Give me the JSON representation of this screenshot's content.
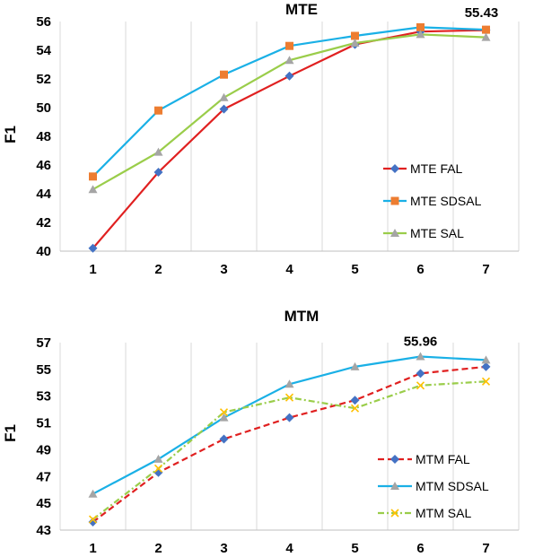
{
  "chart_data": [
    {
      "type": "line",
      "title": "MTE",
      "xlabel": "",
      "ylabel": "F1",
      "categories": [
        "1",
        "2",
        "3",
        "4",
        "5",
        "6",
        "7"
      ],
      "yticks": [
        "40",
        "42",
        "44",
        "46",
        "48",
        "50",
        "52",
        "54",
        "56"
      ],
      "ylim": [
        40,
        56
      ],
      "grid": "vertical",
      "legend_position": "bottom-right",
      "annotation": {
        "text": "55.43",
        "x": "7",
        "y": 55.43
      },
      "series": [
        {
          "name": "MTE FAL",
          "color": "#e02020",
          "marker": "diamond",
          "marker_color": "#4472c4",
          "dash": "solid",
          "values": [
            40.2,
            45.5,
            49.9,
            52.2,
            54.4,
            55.3,
            55.4
          ]
        },
        {
          "name": "MTE SDSAL",
          "color": "#1ab0e6",
          "marker": "square",
          "marker_color": "#ed7d31",
          "dash": "solid",
          "values": [
            45.2,
            49.8,
            52.3,
            54.3,
            55.0,
            55.6,
            55.43
          ]
        },
        {
          "name": "MTE SAL",
          "color": "#9acd4a",
          "marker": "triangle",
          "marker_color": "#a5a5a5",
          "dash": "solid",
          "values": [
            44.3,
            46.9,
            50.7,
            53.3,
            54.5,
            55.1,
            54.9
          ]
        }
      ]
    },
    {
      "type": "line",
      "title": "MTM",
      "xlabel": "",
      "ylabel": "F1",
      "categories": [
        "1",
        "2",
        "3",
        "4",
        "5",
        "6",
        "7"
      ],
      "yticks": [
        "43",
        "45",
        "47",
        "49",
        "51",
        "53",
        "55",
        "57"
      ],
      "ylim": [
        43,
        57
      ],
      "grid": "vertical",
      "legend_position": "bottom-right",
      "annotation": {
        "text": "55.96",
        "x": "6",
        "y": 55.96
      },
      "series": [
        {
          "name": "MTM FAL",
          "color": "#e02020",
          "marker": "diamond",
          "marker_color": "#4472c4",
          "dash": "dashed",
          "values": [
            43.6,
            47.3,
            49.8,
            51.4,
            52.7,
            54.7,
            55.2
          ]
        },
        {
          "name": "MTM SDSAL",
          "color": "#1ab0e6",
          "marker": "triangle",
          "marker_color": "#a5a5a5",
          "dash": "solid",
          "values": [
            45.7,
            48.3,
            51.4,
            53.9,
            55.2,
            55.96,
            55.7
          ]
        },
        {
          "name": "MTM SAL",
          "color": "#9acd4a",
          "marker": "x",
          "marker_color": "#ffc000",
          "dash": "dashdot",
          "values": [
            43.8,
            47.6,
            51.8,
            52.9,
            52.1,
            53.8,
            54.1
          ]
        }
      ]
    }
  ]
}
